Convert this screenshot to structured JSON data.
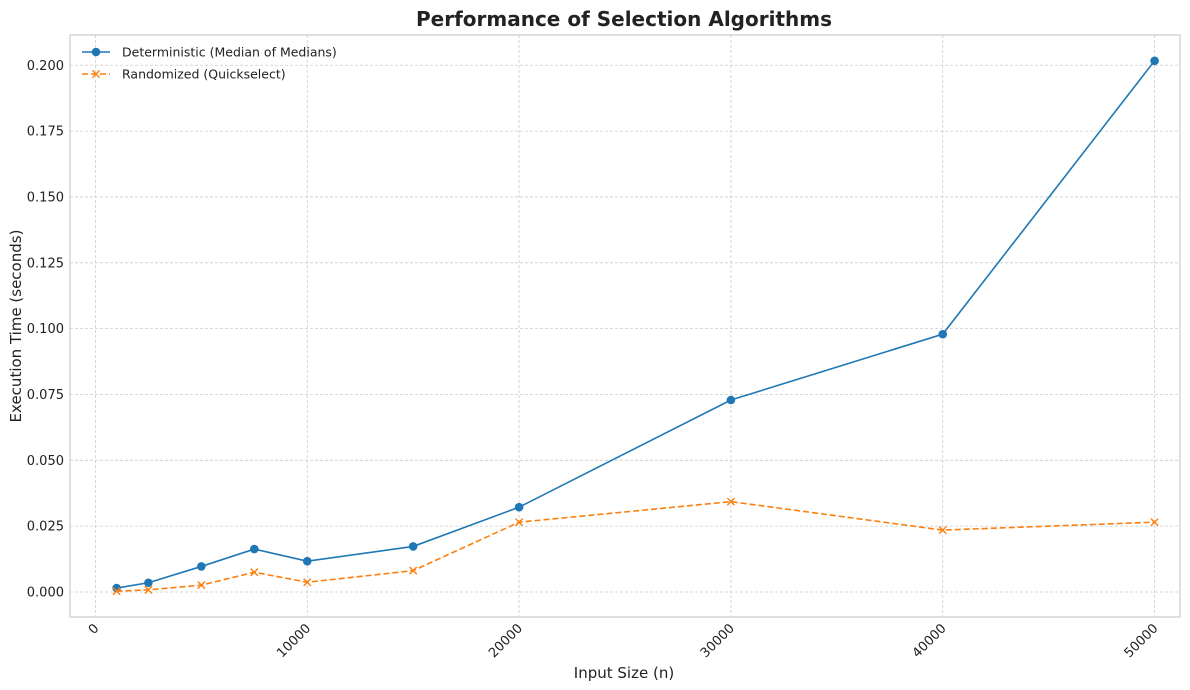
{
  "chart_data": {
    "type": "line",
    "title": "Performance of Selection Algorithms",
    "xlabel": "Input Size (n)",
    "ylabel": "Execution Time (seconds)",
    "xlim": [
      -1200,
      51200
    ],
    "ylim": [
      -0.0095,
      0.2115
    ],
    "xticks": [
      0,
      10000,
      20000,
      30000,
      40000,
      50000
    ],
    "xtick_labels": [
      "0",
      "10000",
      "20000",
      "30000",
      "40000",
      "50000"
    ],
    "yticks": [
      0.0,
      0.025,
      0.05,
      0.075,
      0.1,
      0.125,
      0.15,
      0.175,
      0.2
    ],
    "ytick_labels": [
      "0.000",
      "0.025",
      "0.050",
      "0.075",
      "0.100",
      "0.125",
      "0.150",
      "0.175",
      "0.200"
    ],
    "grid": true,
    "legend_position": "top-left",
    "x": [
      1000,
      2500,
      5000,
      7500,
      10000,
      15000,
      20000,
      30000,
      40000,
      50000
    ],
    "series": [
      {
        "name": "Deterministic (Median of Medians)",
        "color": "#1f77b4",
        "marker": "circle",
        "line_style": "solid",
        "values": [
          0.0015,
          0.0035,
          0.0097,
          0.0163,
          0.0117,
          0.0173,
          0.0322,
          0.0729,
          0.0979,
          0.2017
        ]
      },
      {
        "name": "Randomized (Quickselect)",
        "color": "#ff7f0e",
        "marker": "x",
        "line_style": "dashed",
        "values": [
          0.0003,
          0.0008,
          0.0026,
          0.0075,
          0.0037,
          0.0081,
          0.0265,
          0.0343,
          0.0235,
          0.0265
        ]
      }
    ]
  }
}
